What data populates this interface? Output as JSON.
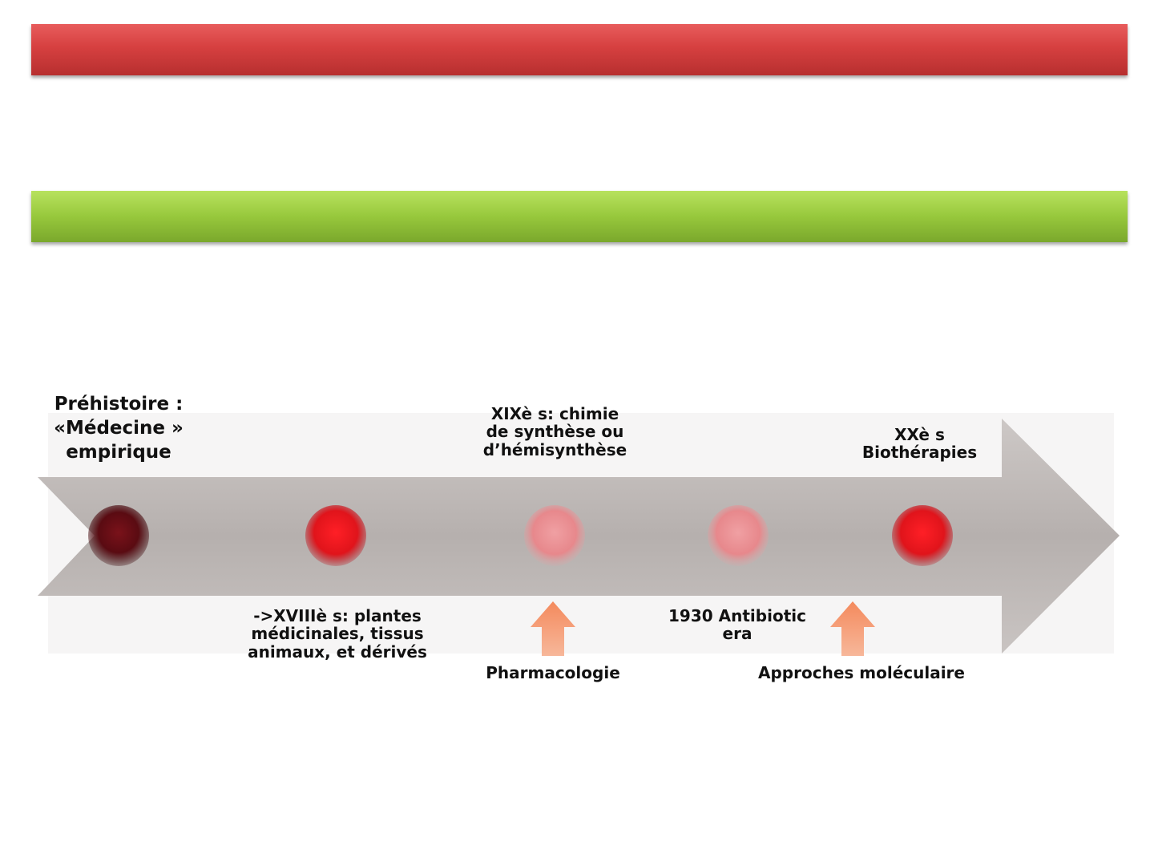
{
  "bars": [
    {
      "name": "red-banner",
      "color": "#d64040"
    },
    {
      "name": "green-banner",
      "color": "#97c83c"
    }
  ],
  "timeline": {
    "arrow_color": "#b9b3b1",
    "milestones": [
      {
        "label": "Préhistoire :\n«Médecine »\nempirique",
        "dot_color": "#6b0f16"
      },
      {
        "label": "->XVIIIè s: plantes\nmédicinales, tissus\nanimaux, et dérivés",
        "dot_color": "#e5161d"
      },
      {
        "label": "XIXè s: chimie\nde synthèse ou\nd’hémisynthèse",
        "dot_color": "#e98a8e"
      },
      {
        "label": "1930 Antibiotic\nera",
        "dot_color": "#e8868a"
      },
      {
        "label": "XXè s\nBiothérapies",
        "dot_color": "#e5161d"
      }
    ],
    "markers": [
      {
        "label": "Pharmacologie",
        "arrow_color": "#f2916a"
      },
      {
        "label": "Approches moléculaire",
        "arrow_color": "#f2916a"
      }
    ]
  }
}
